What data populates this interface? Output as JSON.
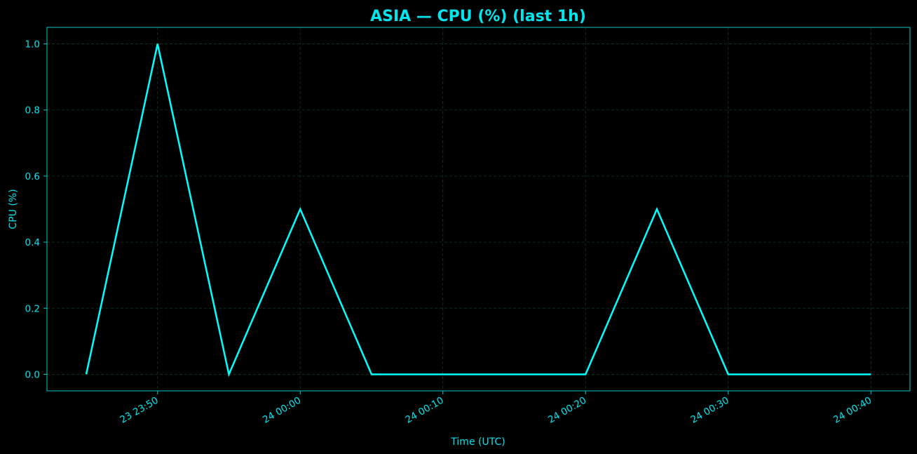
{
  "chart_data": {
    "type": "line",
    "title": "ASIA — CPU (%) (last 1h)",
    "xlabel": "Time (UTC)",
    "ylabel": "CPU (%)",
    "x": [
      "23:45",
      "23:50",
      "23:55",
      "00:00",
      "00:05",
      "00:10",
      "00:15",
      "00:20",
      "00:25",
      "00:30",
      "00:35",
      "00:40"
    ],
    "series": [
      {
        "values": [
          0,
          1.0,
          0,
          0.5,
          0,
          0,
          0,
          0,
          0.5,
          0,
          0,
          0
        ]
      }
    ],
    "x_ticks": [
      "23 23:50",
      "24 00:00",
      "24 00:10",
      "24 00:20",
      "24 00:30",
      "24 00:40"
    ],
    "y_ticks": [
      "0.0",
      "0.2",
      "0.4",
      "0.6",
      "0.8",
      "1.0"
    ],
    "ylim": [
      -0.05,
      1.05
    ],
    "grid": true,
    "colors": {
      "background": "#000000",
      "line": "#00ffff",
      "text": "#00e5ee",
      "grid": "#0b3b1e",
      "spine": "#00cccc"
    }
  }
}
